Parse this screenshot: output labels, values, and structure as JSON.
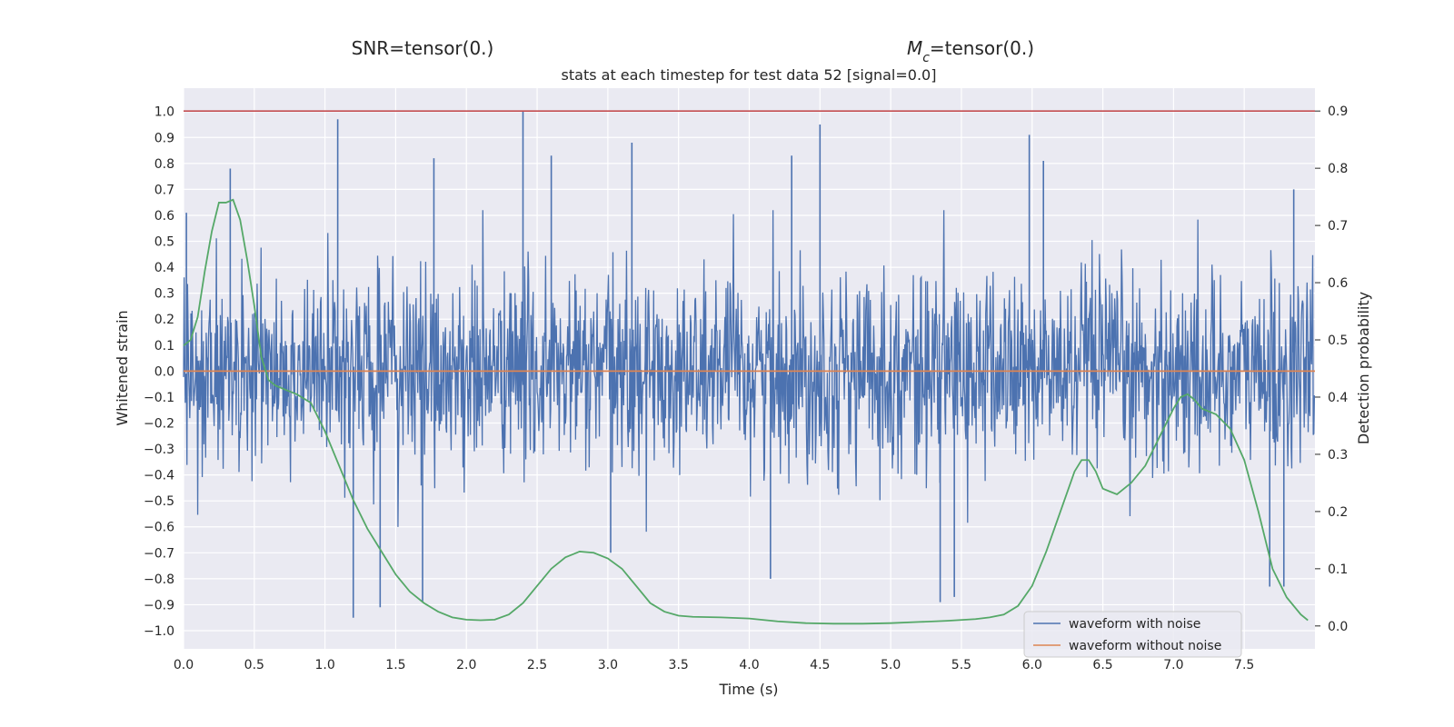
{
  "chart_data": {
    "type": "line",
    "title_left": "SNR=tensor(0.)",
    "title_right_prefix": "M",
    "title_right_sub": "c",
    "title_right_suffix": "=tensor(0.)",
    "subtitle": "stats at each timestep for test data 52 [signal=0.0]",
    "xlabel": "Time (s)",
    "ylabel_left": "Whitened strain",
    "ylabel_right": "Detection probability",
    "xlim": [
      0.0,
      8.0
    ],
    "ylim_left": [
      -1.07,
      1.09
    ],
    "ylim_right": [
      -0.04,
      0.94
    ],
    "x_ticks": [
      "0.0",
      "0.5",
      "1.0",
      "1.5",
      "2.0",
      "2.5",
      "3.0",
      "3.5",
      "4.0",
      "4.5",
      "5.0",
      "5.5",
      "6.0",
      "6.5",
      "7.0",
      "7.5"
    ],
    "y_ticks_left": [
      "1.0",
      "0.9",
      "0.8",
      "0.7",
      "0.6",
      "0.5",
      "0.4",
      "0.3",
      "0.2",
      "0.1",
      "0.0",
      "−0.1",
      "−0.2",
      "−0.3",
      "−0.4",
      "−0.5",
      "−0.6",
      "−0.7",
      "−0.8",
      "−0.9",
      "−1.0"
    ],
    "y_ticks_right": [
      "0.9",
      "0.8",
      "0.7",
      "0.6",
      "0.5",
      "0.4",
      "0.3",
      "0.2",
      "0.1",
      "0.0"
    ],
    "grid": true,
    "legend_position": "bottom-right",
    "legend": [
      "waveform with noise",
      "waveform without noise"
    ],
    "colors": {
      "noise": "#4c72b0",
      "clean": "#dd8452",
      "probability": "#55a868",
      "threshold": "#c44e52",
      "background": "#eaeaf2",
      "grid": "#ffffff"
    },
    "threshold": 0.9,
    "waveform_without_noise": {
      "x": [
        0.0,
        8.0
      ],
      "y": [
        0.0,
        0.0
      ]
    },
    "waveform_with_noise_envelope": {
      "typical_amplitude": 0.3,
      "peak_positive": [
        {
          "t": 0.02,
          "v": 0.61
        },
        {
          "t": 0.33,
          "v": 0.78
        },
        {
          "t": 1.09,
          "v": 0.97
        },
        {
          "t": 1.77,
          "v": 0.82
        },
        {
          "t": 2.4,
          "v": 1.0
        },
        {
          "t": 2.6,
          "v": 0.83
        },
        {
          "t": 3.17,
          "v": 0.88
        },
        {
          "t": 4.3,
          "v": 0.83
        },
        {
          "t": 4.5,
          "v": 0.95
        },
        {
          "t": 5.98,
          "v": 0.91
        },
        {
          "t": 6.08,
          "v": 0.81
        },
        {
          "t": 7.85,
          "v": 0.7
        }
      ],
      "peak_negative": [
        {
          "t": 1.2,
          "v": -0.95
        },
        {
          "t": 1.39,
          "v": -0.91
        },
        {
          "t": 1.69,
          "v": -0.89
        },
        {
          "t": 3.02,
          "v": -0.7
        },
        {
          "t": 4.15,
          "v": -0.8
        },
        {
          "t": 5.35,
          "v": -0.89
        },
        {
          "t": 5.45,
          "v": -0.87
        },
        {
          "t": 7.68,
          "v": -0.83
        },
        {
          "t": 7.78,
          "v": -0.83
        }
      ]
    },
    "detection_probability": {
      "x": [
        0.0,
        0.05,
        0.1,
        0.15,
        0.2,
        0.25,
        0.3,
        0.35,
        0.4,
        0.45,
        0.5,
        0.55,
        0.6,
        0.65,
        0.7,
        0.75,
        0.8,
        0.9,
        1.0,
        1.1,
        1.2,
        1.3,
        1.4,
        1.5,
        1.6,
        1.7,
        1.8,
        1.9,
        2.0,
        2.1,
        2.2,
        2.3,
        2.4,
        2.5,
        2.6,
        2.7,
        2.8,
        2.9,
        3.0,
        3.1,
        3.2,
        3.3,
        3.4,
        3.5,
        3.6,
        3.8,
        4.0,
        4.2,
        4.4,
        4.6,
        4.8,
        5.0,
        5.2,
        5.4,
        5.6,
        5.7,
        5.8,
        5.9,
        6.0,
        6.1,
        6.2,
        6.3,
        6.35,
        6.4,
        6.45,
        6.5,
        6.55,
        6.6,
        6.7,
        6.8,
        6.9,
        7.0,
        7.05,
        7.1,
        7.15,
        7.2,
        7.3,
        7.4,
        7.5,
        7.6,
        7.7,
        7.8,
        7.9,
        7.95
      ],
      "y": [
        0.49,
        0.5,
        0.54,
        0.62,
        0.69,
        0.74,
        0.74,
        0.745,
        0.71,
        0.64,
        0.56,
        0.47,
        0.43,
        0.42,
        0.415,
        0.41,
        0.405,
        0.39,
        0.34,
        0.28,
        0.22,
        0.17,
        0.13,
        0.09,
        0.06,
        0.04,
        0.025,
        0.015,
        0.011,
        0.01,
        0.011,
        0.02,
        0.04,
        0.07,
        0.1,
        0.12,
        0.13,
        0.128,
        0.118,
        0.1,
        0.07,
        0.04,
        0.025,
        0.018,
        0.016,
        0.015,
        0.013,
        0.008,
        0.005,
        0.004,
        0.004,
        0.005,
        0.007,
        0.009,
        0.012,
        0.015,
        0.02,
        0.035,
        0.07,
        0.13,
        0.2,
        0.27,
        0.29,
        0.29,
        0.27,
        0.24,
        0.235,
        0.23,
        0.25,
        0.28,
        0.33,
        0.38,
        0.4,
        0.405,
        0.395,
        0.38,
        0.37,
        0.345,
        0.29,
        0.2,
        0.1,
        0.05,
        0.02,
        0.01
      ]
    }
  }
}
